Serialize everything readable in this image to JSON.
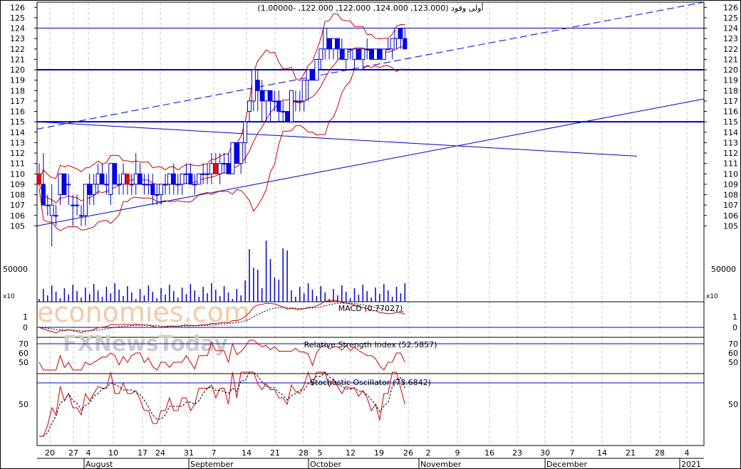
{
  "price_panel": {
    "title": "أولى وقود (123.000, 124.000, 122.000, 122.000, -1.00000)",
    "y_ticks": [
      126,
      125,
      124,
      123,
      122,
      121,
      120,
      119,
      118,
      117,
      116,
      115,
      114,
      113,
      112,
      111,
      110,
      109,
      108,
      107,
      106,
      105
    ],
    "horizontal_levels": [
      124,
      120,
      115
    ]
  },
  "volume_panel": {
    "tick_label": "50000",
    "multiplier_label": "x10"
  },
  "macd_panel": {
    "title": "MACD (0.77027)",
    "y_ticks": [
      "1",
      "0"
    ]
  },
  "rsi_panel": {
    "title": "Relative Strength Index (52.5857)",
    "y_ticks": [
      "70",
      "60",
      "50"
    ]
  },
  "stoch_panel": {
    "title": "Stochastic Oscillator (73.6842)",
    "y_ticks": [
      "50"
    ]
  },
  "watermark": {
    "brand": "economies.com",
    "sub": "FXNewsToday"
  },
  "x_axis": {
    "day_ticks": [
      "20",
      "27",
      "4",
      "10",
      "17",
      "24",
      "31",
      "7",
      "14",
      "21",
      "28",
      "5",
      "12",
      "19",
      "26",
      "2",
      "9",
      "16",
      "23",
      "30",
      "7",
      "14",
      "21",
      "28",
      "4"
    ],
    "months": [
      "August",
      "September",
      "October",
      "November",
      "December",
      "2021"
    ]
  },
  "colors": {
    "price_line": "#cc0000",
    "trend": "#0000cc",
    "up_candle": "#ffffff",
    "down_candle": "#0000ff",
    "red_candle": "#ee0000",
    "grid": "#c8c8c8"
  },
  "chart_data": {
    "type": "candlestick",
    "title": "أولى وقود (123.000, 124.000, 122.000, 122.000, -1.00000)",
    "ylim": [
      104,
      126.5
    ],
    "candles_ohlc": [
      [
        110,
        111,
        109,
        109
      ],
      [
        109,
        112,
        107,
        107
      ],
      [
        107,
        108,
        106,
        107
      ],
      [
        106,
        109,
        103,
        107
      ],
      [
        106,
        107,
        105,
        106
      ],
      [
        108,
        110,
        107,
        110
      ],
      [
        110,
        110,
        108,
        108
      ],
      [
        109,
        110,
        107,
        109
      ],
      [
        107,
        108,
        105,
        107
      ],
      [
        107,
        108,
        106,
        107
      ],
      [
        106,
        107,
        105,
        106
      ],
      [
        106,
        109,
        105,
        109
      ],
      [
        109,
        110,
        107,
        108
      ],
      [
        108,
        110,
        107,
        109
      ],
      [
        109,
        111,
        108,
        110
      ],
      [
        110,
        111,
        109,
        109
      ],
      [
        109,
        110,
        108,
        109
      ],
      [
        108,
        111,
        107,
        111
      ],
      [
        111,
        111,
        109,
        109
      ],
      [
        109,
        110,
        108,
        109
      ],
      [
        109,
        111,
        108,
        110
      ],
      [
        110,
        110,
        108,
        109
      ],
      [
        109,
        110,
        108,
        109
      ],
      [
        109,
        112,
        108,
        110
      ],
      [
        110,
        111,
        109,
        109
      ],
      [
        109,
        110,
        108,
        109
      ],
      [
        109,
        110,
        108,
        109
      ],
      [
        109,
        110,
        107,
        108
      ],
      [
        108,
        109,
        107,
        108
      ],
      [
        108,
        109,
        107,
        109
      ],
      [
        109,
        110,
        108,
        109
      ],
      [
        109,
        110,
        108,
        110
      ],
      [
        110,
        111,
        108,
        109
      ],
      [
        109,
        110,
        108,
        109
      ],
      [
        109,
        110,
        108,
        110
      ],
      [
        110,
        111,
        109,
        110
      ],
      [
        110,
        111,
        109,
        109
      ],
      [
        109,
        110,
        108,
        109
      ],
      [
        109,
        110,
        109,
        110
      ],
      [
        110,
        111,
        109,
        110
      ],
      [
        110,
        111,
        109,
        110
      ],
      [
        110,
        112,
        109,
        111
      ],
      [
        111,
        112,
        110,
        110
      ],
      [
        110,
        112,
        109,
        111
      ],
      [
        111,
        112,
        110,
        111
      ],
      [
        111,
        112,
        110,
        110
      ],
      [
        110,
        113,
        110,
        113
      ],
      [
        113,
        113,
        111,
        111
      ],
      [
        111,
        113,
        110,
        113
      ],
      [
        113,
        115,
        111,
        115
      ],
      [
        116,
        117,
        115,
        117
      ],
      [
        117,
        120,
        116,
        120
      ],
      [
        119,
        120,
        116,
        118
      ],
      [
        118,
        119,
        115,
        117
      ],
      [
        117,
        118,
        115,
        118
      ],
      [
        118,
        118,
        115,
        117
      ],
      [
        117,
        118,
        116,
        117
      ],
      [
        117,
        118,
        115,
        116
      ],
      [
        116,
        117,
        115,
        116
      ],
      [
        116,
        116,
        115,
        115
      ],
      [
        115,
        118,
        115,
        118
      ],
      [
        117,
        118,
        116,
        117
      ],
      [
        117,
        118,
        116,
        117
      ],
      [
        117,
        119,
        116,
        119
      ],
      [
        119,
        120,
        117,
        120
      ],
      [
        120,
        120,
        119,
        119
      ],
      [
        119,
        121,
        119,
        121
      ],
      [
        121,
        122,
        120,
        122
      ],
      [
        122,
        124,
        121,
        124
      ],
      [
        123,
        123,
        121,
        122
      ],
      [
        122,
        123,
        121,
        123
      ],
      [
        123,
        123,
        121,
        122
      ],
      [
        122,
        123,
        121,
        121
      ],
      [
        121,
        122,
        120,
        122
      ],
      [
        122,
        122,
        121,
        122
      ],
      [
        121,
        122,
        120,
        122
      ],
      [
        122,
        122,
        121,
        121
      ],
      [
        121,
        122,
        120,
        122
      ],
      [
        122,
        123,
        121,
        122
      ],
      [
        122,
        122,
        121,
        121
      ],
      [
        121,
        122,
        121,
        122
      ],
      [
        122,
        122,
        121,
        121
      ],
      [
        121,
        122,
        121,
        122
      ],
      [
        122,
        123,
        122,
        122
      ],
      [
        122,
        123,
        121,
        123
      ],
      [
        123,
        124,
        122,
        124
      ],
      [
        124,
        124,
        122,
        123
      ],
      [
        123,
        124,
        122,
        122
      ]
    ]
  }
}
